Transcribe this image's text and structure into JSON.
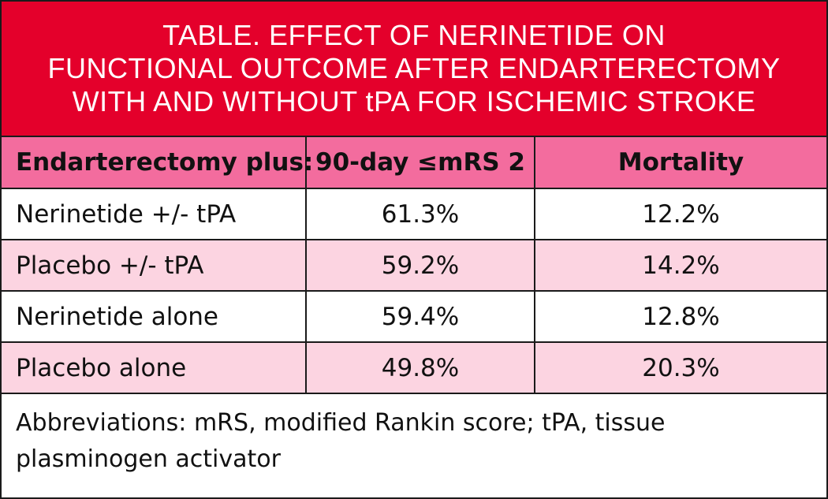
{
  "title": {
    "line1": "TABLE. EFFECT OF NERINETIDE ON",
    "line2": "FUNCTIONAL OUTCOME AFTER ENDARTERECTOMY",
    "line3": "WITH AND WITHOUT tPA FOR ISCHEMIC STROKE"
  },
  "table": {
    "headers": [
      "Endarterectomy plus:",
      "90-day ≤mRS 2",
      "Mortality"
    ],
    "rows": [
      [
        "Nerinetide +/- tPA",
        "61.3%",
        "12.2%"
      ],
      [
        "Placebo +/- tPA",
        "59.2%",
        "14.2%"
      ],
      [
        "Nerinetide alone",
        "59.4%",
        "12.8%"
      ],
      [
        "Placebo alone",
        "49.8%",
        "20.3%"
      ]
    ]
  },
  "footnote": {
    "line1": "Abbreviations: mRS, modified Rankin score; tPA, tissue",
    "line2": "plasminogen activator"
  },
  "colors": {
    "title_band": "#e4002b",
    "header_row": "#f36c9e",
    "alt_row": "#fcd4e1",
    "border": "#1a1a1a"
  }
}
